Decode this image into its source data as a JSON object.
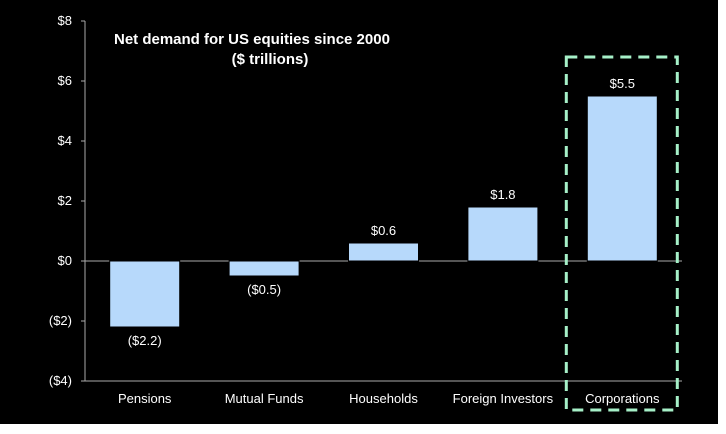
{
  "chart_data": {
    "type": "bar",
    "title": "Net demand for US equities since 2000",
    "subtitle": "($ trillions)",
    "categories": [
      "Pensions",
      "Mutual Funds",
      "Households",
      "Foreign Investors",
      "Corporations"
    ],
    "values": [
      -2.2,
      -0.5,
      0.6,
      1.8,
      5.5
    ],
    "data_labels": [
      "($2.2)",
      "($0.5)",
      "$0.6",
      "$1.8",
      "$5.5"
    ],
    "ylim": [
      -4,
      8
    ],
    "yticks": [
      8,
      6,
      4,
      2,
      0,
      -2,
      -4
    ],
    "ytick_labels": [
      "$8",
      "$6",
      "$4",
      "$2",
      "$0",
      "($2)",
      "($4)"
    ],
    "highlighted_category": "Corporations",
    "colors": {
      "background": "#000000",
      "bar_fill": "#b7d9fb",
      "bar_stroke": "#000000",
      "axis": "#aaaaaa",
      "text": "#ffffff",
      "highlight_box": "#a6f0c8"
    }
  }
}
